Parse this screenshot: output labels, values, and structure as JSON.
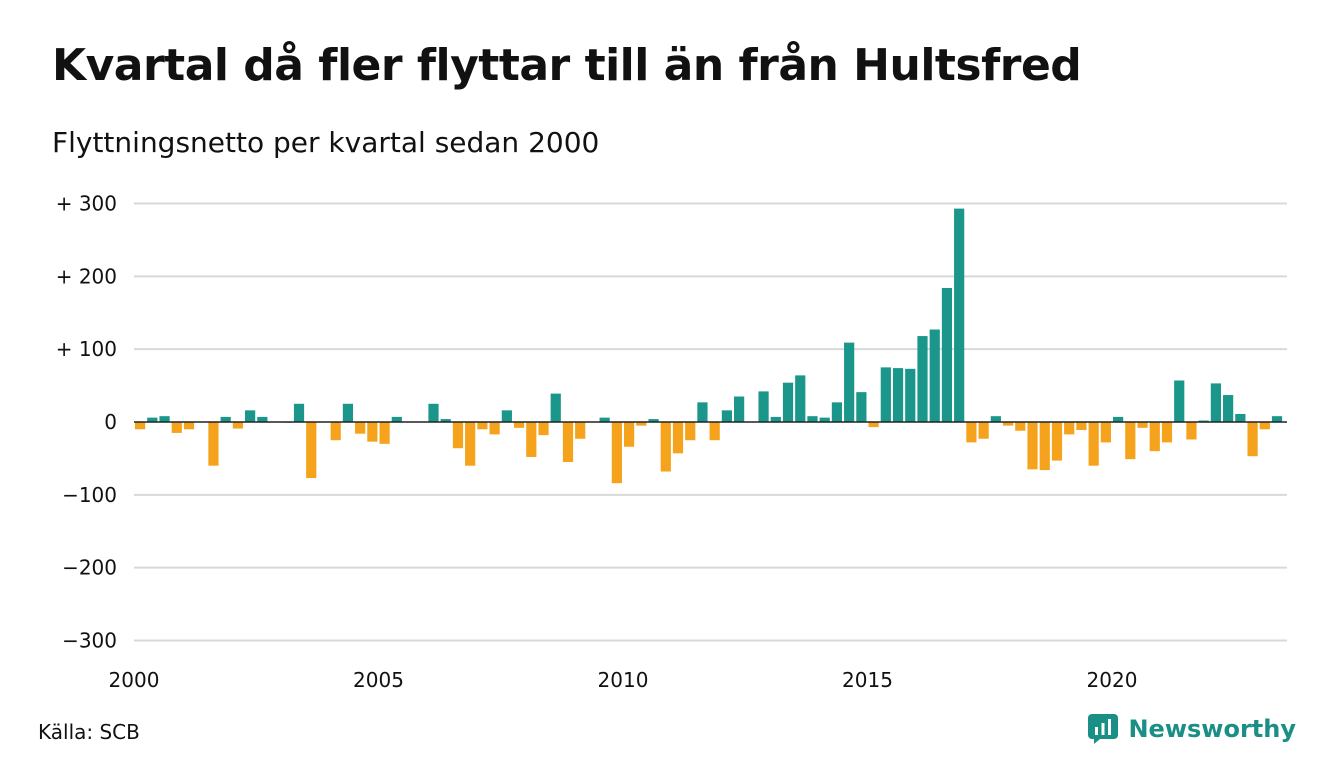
{
  "header": {
    "title": "Kvartal då fler flyttar till än från Hultsfred",
    "subtitle": "Flyttningsnetto per kvartal sedan 2000"
  },
  "footer": {
    "source": "Källa: SCB",
    "brand": "Newsworthy"
  },
  "colors": {
    "positive": "#1a968b",
    "negative": "#f5a21c",
    "grid": "#d9d9d9",
    "zero_line": "#222222",
    "brand": "#1a8f86"
  },
  "chart_data": {
    "type": "bar",
    "title": "Kvartal då fler flyttar till än från Hultsfred",
    "subtitle": "Flyttningsnetto per kvartal sedan 2000",
    "xlabel": "",
    "ylabel": "",
    "ylim": [
      -300,
      300
    ],
    "yticks": [
      {
        "value": 300,
        "label": "+ 300"
      },
      {
        "value": 200,
        "label": "+ 200"
      },
      {
        "value": 100,
        "label": "+ 100"
      },
      {
        "value": 0,
        "label": "0"
      },
      {
        "value": -100,
        "label": "−100"
      },
      {
        "value": -200,
        "label": "−200"
      },
      {
        "value": -300,
        "label": "−300"
      }
    ],
    "xticks": [
      "2000",
      "2005",
      "2010",
      "2015",
      "2020"
    ],
    "start_year": 2000,
    "quarters_per_year": 4,
    "grid": true,
    "legend": "none",
    "values": [
      -10,
      6,
      8,
      -15,
      -10,
      0,
      -60,
      7,
      -9,
      16,
      7,
      0,
      -1,
      25,
      -77,
      0,
      -25,
      25,
      -16,
      -27,
      -30,
      7,
      0,
      0,
      25,
      4,
      -36,
      -60,
      -10,
      -17,
      16,
      -8,
      -48,
      -18,
      39,
      -55,
      -23,
      0,
      6,
      -84,
      -34,
      -5,
      4,
      -68,
      -43,
      -25,
      27,
      -25,
      16,
      35,
      0,
      42,
      7,
      54,
      64,
      8,
      6,
      27,
      109,
      41,
      -7,
      75,
      74,
      73,
      118,
      127,
      184,
      293,
      -28,
      -23,
      8,
      -5,
      -12,
      -65,
      -66,
      -53,
      -17,
      -11,
      -60,
      -28,
      7,
      -51,
      -8,
      -40,
      -28,
      57,
      -24,
      2,
      53,
      37,
      11,
      -47,
      -10,
      8
    ]
  }
}
